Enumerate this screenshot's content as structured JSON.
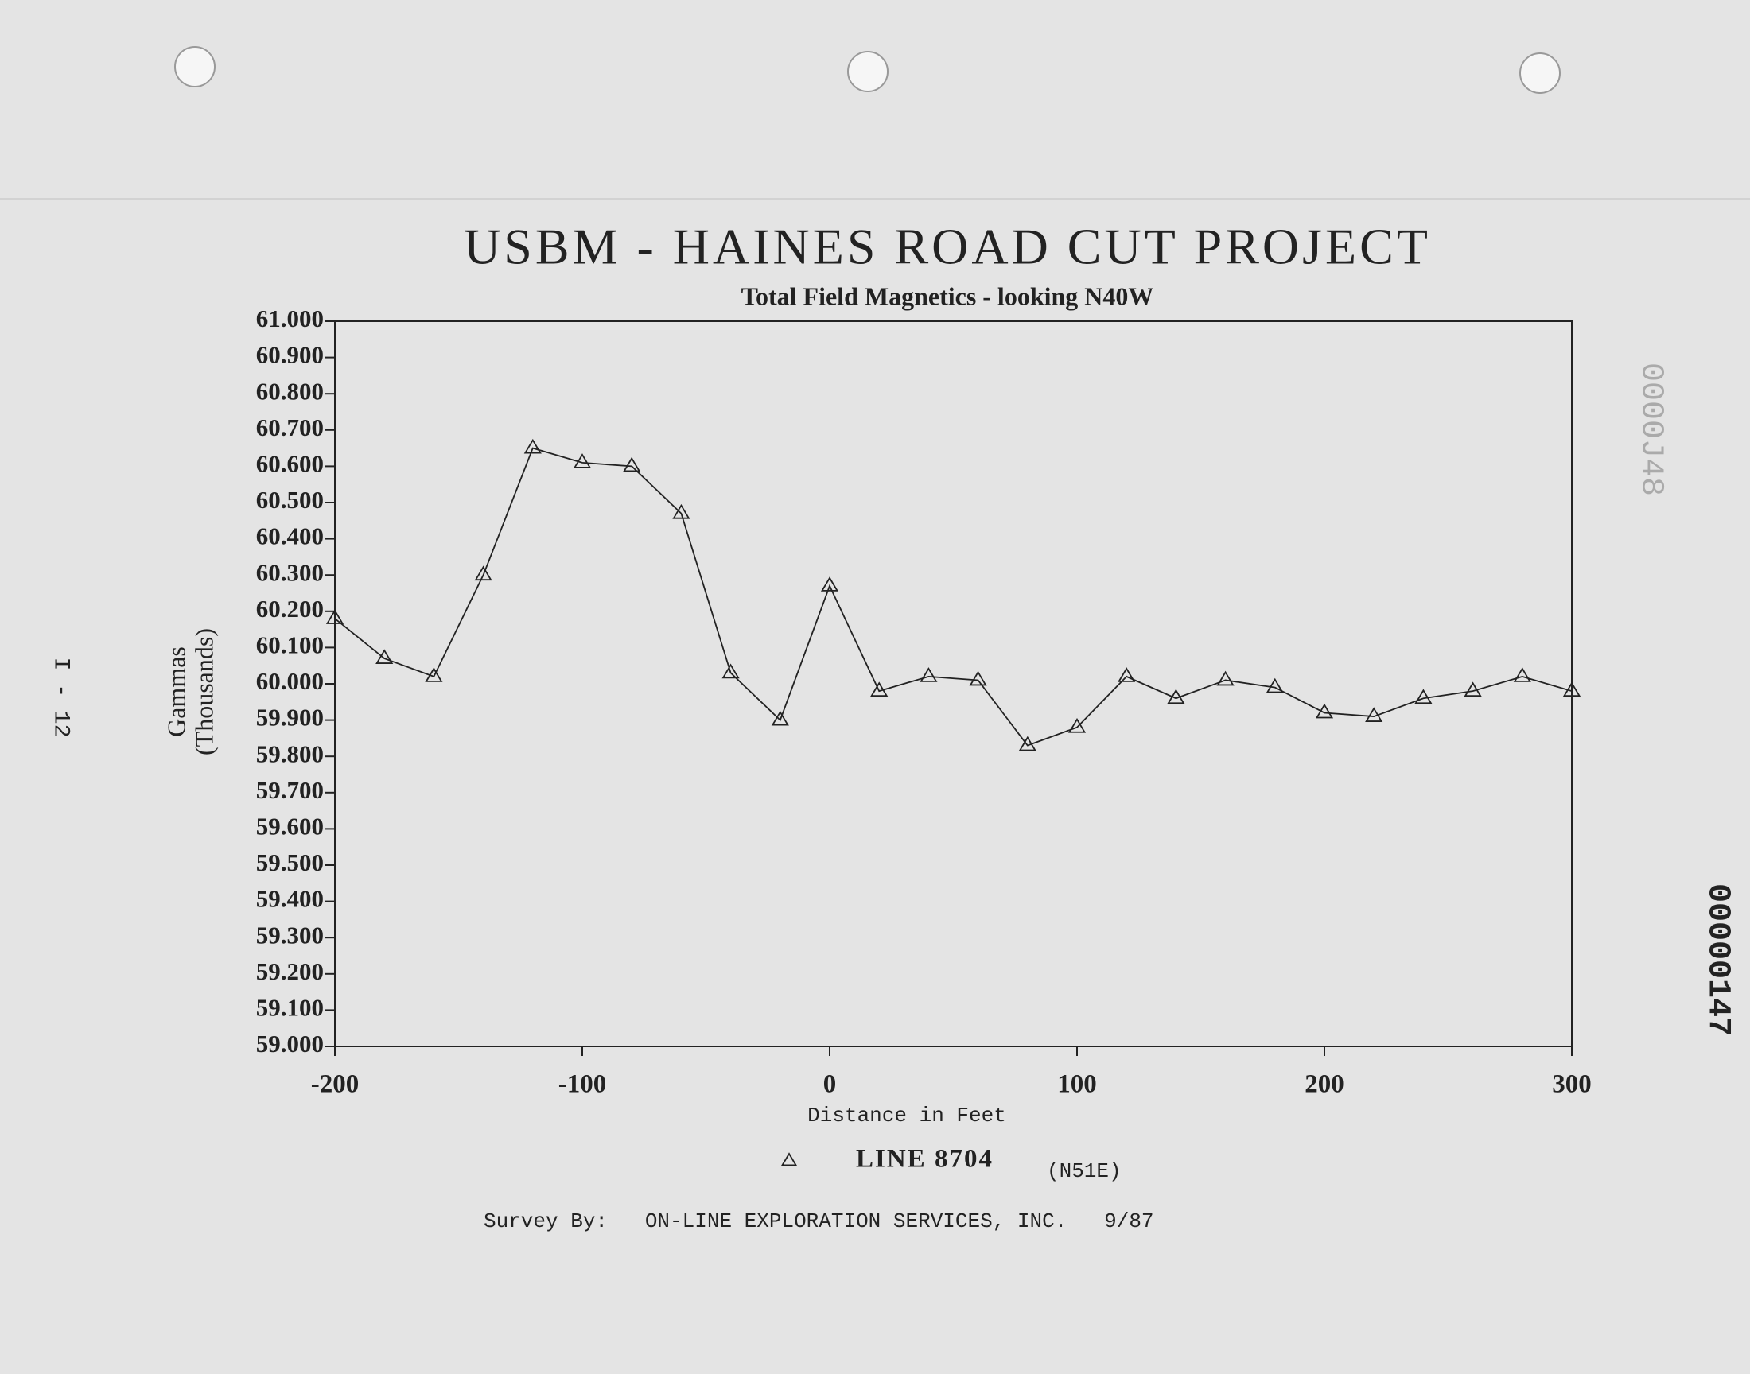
{
  "chart_data": {
    "type": "line",
    "title": "USBM - HAINES ROAD CUT PROJECT",
    "subtitle": "Total Field Magnetics - looking N40W",
    "x_label": "Distance in Feet",
    "y_label": [
      "Gammas",
      "(Thousands)"
    ],
    "x": [
      -200,
      -180,
      -160,
      -140,
      -120,
      -100,
      -80,
      -60,
      -40,
      -20,
      0,
      20,
      40,
      60,
      80,
      100,
      120,
      140,
      160,
      180,
      200,
      220,
      240,
      260,
      280,
      300
    ],
    "series": [
      {
        "name": "LINE 8704",
        "color": "#222222",
        "marker": "triangle",
        "values": [
          60.18,
          60.07,
          60.02,
          60.3,
          60.65,
          60.61,
          60.6,
          60.47,
          60.03,
          59.9,
          60.27,
          59.98,
          60.02,
          60.01,
          59.83,
          59.88,
          60.02,
          59.96,
          60.01,
          59.99,
          59.92,
          59.91,
          59.96,
          59.98,
          60.02,
          59.98
        ]
      }
    ],
    "legend_note": "(N51E)",
    "xlim": [
      -200,
      300
    ],
    "xticks": [
      -200,
      -100,
      0,
      100,
      200,
      300
    ],
    "ylim": [
      59.0,
      61.0
    ],
    "yticks": [
      {
        "value": 59.0,
        "label": "59.000"
      },
      {
        "value": 59.1,
        "label": "59.100"
      },
      {
        "value": 59.2,
        "label": "59.200"
      },
      {
        "value": 59.3,
        "label": "59.300"
      },
      {
        "value": 59.4,
        "label": "59.400"
      },
      {
        "value": 59.5,
        "label": "59.500"
      },
      {
        "value": 59.6,
        "label": "59.600"
      },
      {
        "value": 59.7,
        "label": "59.700"
      },
      {
        "value": 59.8,
        "label": "59.800"
      },
      {
        "value": 59.9,
        "label": "59.900"
      },
      {
        "value": 60.0,
        "label": "60.000"
      },
      {
        "value": 60.1,
        "label": "60.100"
      },
      {
        "value": 60.2,
        "label": "60.200"
      },
      {
        "value": 60.3,
        "label": "60.300"
      },
      {
        "value": 60.4,
        "label": "60.400"
      },
      {
        "value": 60.5,
        "label": "60.500"
      },
      {
        "value": 60.6,
        "label": "60.600"
      },
      {
        "value": 60.7,
        "label": "60.700"
      },
      {
        "value": 60.8,
        "label": "60.800"
      },
      {
        "value": 60.9,
        "label": "60.900"
      },
      {
        "value": 61.0,
        "label": "61.000"
      }
    ],
    "grid": false,
    "footer": "Survey By:   ON-LINE EXPLORATION SERVICES, INC.   9/87",
    "page_marks": [
      "I - 12",
      "00000147",
      "0000J48"
    ]
  }
}
